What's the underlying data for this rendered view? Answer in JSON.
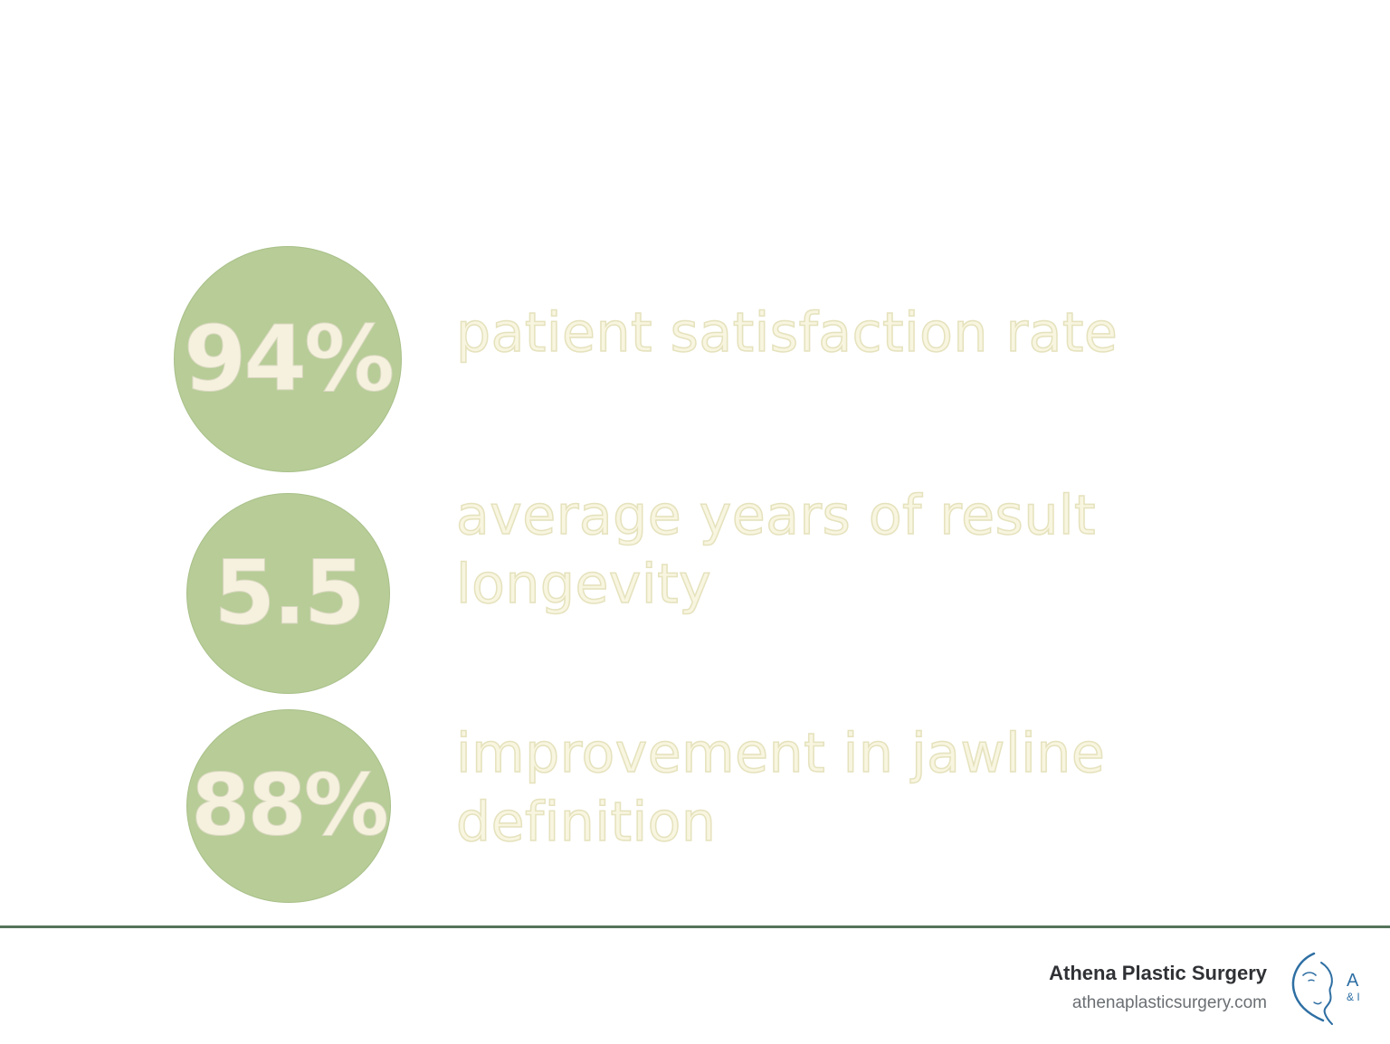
{
  "stats": [
    {
      "value": "94%",
      "label": "patient satisfaction rate"
    },
    {
      "value": "5.5",
      "label": "average years of result longevity"
    },
    {
      "value": "88%",
      "label": "improvement in jawline definition"
    }
  ],
  "footer": {
    "brand_name": "Athena Plastic Surgery",
    "website": "athenaplasticsurgery.com",
    "logo_text": "A",
    "logo_subtext": "& I"
  },
  "colors": {
    "circle_fill": "#b7cc97",
    "number_text": "#f5f1de",
    "label_text": "#f8f5e0",
    "divider": "#55745a",
    "logo_accent": "#2e6fa3"
  },
  "icons": {
    "logo": "face-profile-logo-icon"
  }
}
